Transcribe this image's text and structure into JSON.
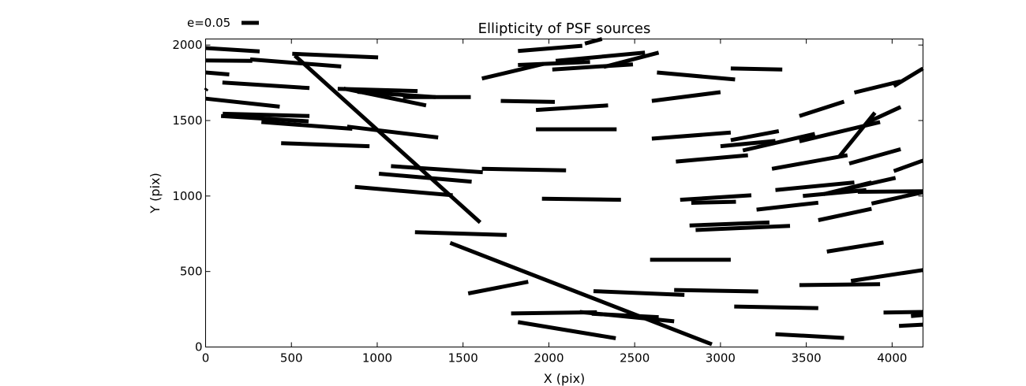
{
  "chart_data": {
    "type": "scatter",
    "marker": "whisker",
    "title": "Ellipticity of PSF sources",
    "xlabel": "X (pix)",
    "ylabel": "Y (pix)",
    "xlim": [
      0,
      4180
    ],
    "ylim": [
      0,
      2040
    ],
    "xticks": [
      0,
      500,
      1000,
      1500,
      2000,
      2500,
      3000,
      3500,
      4000
    ],
    "yticks": [
      0,
      500,
      1000,
      1500,
      2000
    ],
    "grid": false,
    "legend": {
      "label": "e=0.05",
      "placement": "above-top-left"
    },
    "color": "#000000",
    "whiskers": [
      [
        [
          0,
          1980
        ],
        [
          315,
          1958
        ]
      ],
      [
        [
          0,
          1898
        ],
        [
          272,
          1895
        ]
      ],
      [
        [
          0,
          1818
        ],
        [
          138,
          1805
        ]
      ],
      [
        [
          0,
          1700
        ],
        [
          8,
          1712
        ]
      ],
      [
        [
          0,
          1645
        ],
        [
          432,
          1592
        ]
      ],
      [
        [
          100,
          1545
        ],
        [
          605,
          1530
        ]
      ],
      [
        [
          98,
          1752
        ],
        [
          605,
          1715
        ]
      ],
      [
        [
          90,
          1530
        ],
        [
          600,
          1495
        ]
      ],
      [
        [
          325,
          1490
        ],
        [
          855,
          1445
        ]
      ],
      [
        [
          260,
          1905
        ],
        [
          790,
          1858
        ]
      ],
      [
        [
          505,
          1942
        ],
        [
          1005,
          1918
        ]
      ],
      [
        [
          440,
          1350
        ],
        [
          955,
          1330
        ]
      ],
      [
        [
          770,
          1710
        ],
        [
          1235,
          1695
        ]
      ],
      [
        [
          885,
          1690
        ],
        [
          1340,
          1655
        ]
      ],
      [
        [
          805,
          1712
        ],
        [
          1285,
          1600
        ]
      ],
      [
        [
          1150,
          1655
        ],
        [
          1545,
          1655
        ]
      ],
      [
        [
          825,
          1460
        ],
        [
          1355,
          1388
        ]
      ],
      [
        [
          1080,
          1198
        ],
        [
          1615,
          1158
        ]
      ],
      [
        [
          1010,
          1148
        ],
        [
          1550,
          1095
        ]
      ],
      [
        [
          870,
          1060
        ],
        [
          1440,
          1005
        ]
      ],
      [
        [
          520,
          1930
        ],
        [
          1600,
          825
        ]
      ],
      [
        [
          1610,
          1180
        ],
        [
          2100,
          1170
        ]
      ],
      [
        [
          1720,
          1630
        ],
        [
          2035,
          1623
        ]
      ],
      [
        [
          1925,
          1570
        ],
        [
          2345,
          1600
        ]
      ],
      [
        [
          1925,
          1442
        ],
        [
          2395,
          1442
        ]
      ],
      [
        [
          1610,
          1778
        ],
        [
          1970,
          1875
        ]
      ],
      [
        [
          1820,
          1868
        ],
        [
          2240,
          1888
        ]
      ],
      [
        [
          1820,
          1960
        ],
        [
          2195,
          1995
        ]
      ],
      [
        [
          2040,
          1895
        ],
        [
          2560,
          1950
        ]
      ],
      [
        [
          2210,
          2010
        ],
        [
          2310,
          2040
        ]
      ],
      [
        [
          2020,
          1838
        ],
        [
          2490,
          1872
        ]
      ],
      [
        [
          2320,
          1855
        ],
        [
          2640,
          1950
        ]
      ],
      [
        [
          1960,
          982
        ],
        [
          2420,
          975
        ]
      ],
      [
        [
          1220,
          760
        ],
        [
          1755,
          742
        ]
      ],
      [
        [
          1425,
          690
        ],
        [
          2950,
          18
        ]
      ],
      [
        [
          1530,
          355
        ],
        [
          1880,
          432
        ]
      ],
      [
        [
          1780,
          222
        ],
        [
          2280,
          230
        ]
      ],
      [
        [
          1820,
          165
        ],
        [
          2390,
          58
        ]
      ],
      [
        [
          2180,
          232
        ],
        [
          2730,
          170
        ]
      ],
      [
        [
          2250,
          220
        ],
        [
          2640,
          198
        ]
      ],
      [
        [
          2260,
          370
        ],
        [
          2790,
          345
        ]
      ],
      [
        [
          2590,
          578
        ],
        [
          3060,
          578
        ]
      ],
      [
        [
          2730,
          378
        ],
        [
          3220,
          368
        ]
      ],
      [
        [
          2630,
          1818
        ],
        [
          3085,
          1772
        ]
      ],
      [
        [
          2600,
          1630
        ],
        [
          3000,
          1688
        ]
      ],
      [
        [
          2600,
          1380
        ],
        [
          3060,
          1420
        ]
      ],
      [
        [
          2740,
          1228
        ],
        [
          3160,
          1270
        ]
      ],
      [
        [
          2765,
          975
        ],
        [
          3180,
          1005
        ]
      ],
      [
        [
          2830,
          955
        ],
        [
          3090,
          962
        ]
      ],
      [
        [
          2820,
          805
        ],
        [
          3285,
          825
        ]
      ],
      [
        [
          2855,
          775
        ],
        [
          3405,
          802
        ]
      ],
      [
        [
          3000,
          1330
        ],
        [
          3320,
          1365
        ]
      ],
      [
        [
          3060,
          1370
        ],
        [
          3340,
          1430
        ]
      ],
      [
        [
          3080,
          268
        ],
        [
          3570,
          258
        ]
      ],
      [
        [
          3130,
          1302
        ],
        [
          3550,
          1412
        ]
      ],
      [
        [
          3060,
          1845
        ],
        [
          3360,
          1838
        ]
      ],
      [
        [
          3210,
          910
        ],
        [
          3570,
          956
        ]
      ],
      [
        [
          3300,
          1180
        ],
        [
          3740,
          1270
        ]
      ],
      [
        [
          3320,
          1040
        ],
        [
          3780,
          1090
        ]
      ],
      [
        [
          3320,
          85
        ],
        [
          3720,
          60
        ]
      ],
      [
        [
          3460,
          410
        ],
        [
          3930,
          416
        ]
      ],
      [
        [
          3460,
          1362
        ],
        [
          3930,
          1490
        ]
      ],
      [
        [
          3460,
          1530
        ],
        [
          3720,
          1625
        ]
      ],
      [
        [
          3480,
          1000
        ],
        [
          3850,
          1040
        ]
      ],
      [
        [
          3600,
          1012
        ],
        [
          3880,
          1090
        ]
      ],
      [
        [
          3570,
          840
        ],
        [
          3880,
          915
        ]
      ],
      [
        [
          3620,
          632
        ],
        [
          3950,
          692
        ]
      ],
      [
        [
          3690,
          1258
        ],
        [
          3900,
          1552
        ]
      ],
      [
        [
          3780,
          1685
        ],
        [
          4050,
          1760
        ]
      ],
      [
        [
          3750,
          1215
        ],
        [
          4050,
          1310
        ]
      ],
      [
        [
          3740,
          1048
        ],
        [
          4020,
          1120
        ]
      ],
      [
        [
          3760,
          438
        ],
        [
          4180,
          510
        ]
      ],
      [
        [
          3800,
          1028
        ],
        [
          4180,
          1032
        ]
      ],
      [
        [
          3860,
          1490
        ],
        [
          4050,
          1590
        ]
      ],
      [
        [
          3880,
          950
        ],
        [
          4180,
          1025
        ]
      ],
      [
        [
          3950,
          228
        ],
        [
          4180,
          232
        ]
      ],
      [
        [
          4010,
          1165
        ],
        [
          4180,
          1235
        ]
      ],
      [
        [
          4010,
          1728
        ],
        [
          4180,
          1845
        ]
      ],
      [
        [
          4040,
          140
        ],
        [
          4180,
          148
        ]
      ],
      [
        [
          4110,
          205
        ],
        [
          4180,
          212
        ]
      ]
    ]
  }
}
